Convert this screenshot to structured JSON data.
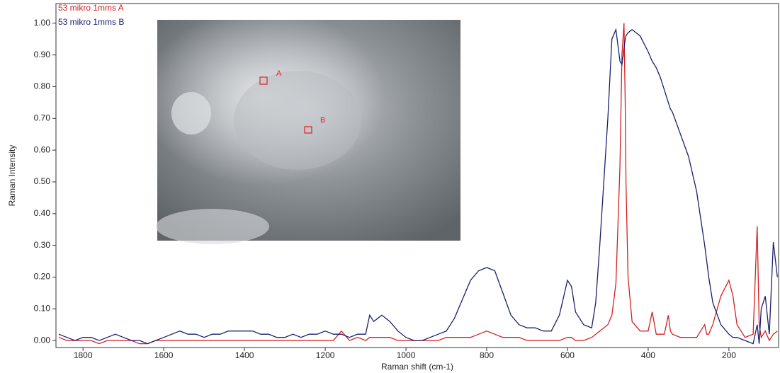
{
  "chart_data": {
    "type": "line",
    "xlabel": "Raman shift (cm-1)",
    "ylabel": "Raman Intensity",
    "annotations": [
      "A",
      "B"
    ],
    "x": [
      1860,
      1840,
      1820,
      1800,
      1780,
      1760,
      1740,
      1720,
      1700,
      1680,
      1660,
      1640,
      1620,
      1600,
      1580,
      1560,
      1540,
      1520,
      1500,
      1480,
      1460,
      1440,
      1420,
      1400,
      1380,
      1360,
      1340,
      1320,
      1300,
      1280,
      1260,
      1240,
      1220,
      1200,
      1180,
      1160,
      1140,
      1120,
      1100,
      1090,
      1080,
      1070,
      1060,
      1050,
      1040,
      1020,
      1000,
      980,
      960,
      940,
      920,
      900,
      880,
      860,
      840,
      820,
      800,
      780,
      760,
      740,
      720,
      700,
      680,
      660,
      640,
      620,
      600,
      590,
      580,
      560,
      540,
      530,
      520,
      500,
      490,
      480,
      470,
      465,
      460,
      457,
      455,
      450,
      440,
      420,
      400,
      390,
      380,
      370,
      360,
      350,
      345,
      340,
      320,
      300,
      280,
      260,
      255,
      250,
      240,
      220,
      200,
      190,
      180,
      160,
      140,
      130,
      125,
      120,
      110,
      100,
      90,
      80
    ],
    "series": [
      {
        "name": "53 mikro 1mms A",
        "color": "#d42020",
        "values": [
          0.01,
          0.0,
          0.0,
          0.0,
          0.0,
          -0.01,
          0.0,
          0.0,
          0.0,
          0.0,
          -0.01,
          -0.01,
          0.0,
          0.0,
          0.0,
          0.0,
          0.0,
          0.0,
          0.0,
          0.0,
          0.0,
          0.0,
          0.0,
          0.0,
          0.0,
          0.0,
          0.0,
          0.0,
          0.0,
          0.0,
          0.0,
          0.0,
          0.0,
          0.0,
          0.0,
          0.03,
          0.0,
          0.01,
          0.0,
          0.01,
          0.01,
          0.01,
          0.01,
          0.01,
          0.01,
          0.0,
          0.0,
          0.0,
          0.0,
          0.0,
          0.0,
          0.01,
          0.01,
          0.01,
          0.01,
          0.02,
          0.03,
          0.02,
          0.01,
          0.01,
          0.01,
          0.0,
          0.0,
          0.0,
          0.0,
          0.0,
          0.01,
          0.01,
          0.0,
          0.0,
          0.01,
          0.02,
          0.03,
          0.05,
          0.08,
          0.18,
          0.55,
          0.9,
          1.0,
          0.75,
          0.5,
          0.2,
          0.06,
          0.03,
          0.03,
          0.09,
          0.02,
          0.02,
          0.02,
          0.08,
          0.03,
          0.02,
          0.01,
          0.01,
          0.01,
          0.05,
          0.02,
          0.02,
          0.05,
          0.14,
          0.19,
          0.14,
          0.05,
          0.01,
          0.02,
          0.36,
          0.05,
          0.01,
          0.03,
          0.0,
          0.02,
          0.03
        ]
      },
      {
        "name": "53 mikro 1mms B",
        "color": "#1a1f6e",
        "values": [
          0.02,
          0.01,
          0.0,
          0.01,
          0.01,
          0.0,
          0.01,
          0.02,
          0.01,
          0.0,
          0.0,
          -0.01,
          0.0,
          0.01,
          0.02,
          0.03,
          0.02,
          0.02,
          0.01,
          0.02,
          0.02,
          0.03,
          0.03,
          0.03,
          0.03,
          0.02,
          0.02,
          0.01,
          0.01,
          0.02,
          0.01,
          0.02,
          0.02,
          0.03,
          0.02,
          0.02,
          0.01,
          0.02,
          0.02,
          0.08,
          0.06,
          0.07,
          0.08,
          0.07,
          0.06,
          0.03,
          0.01,
          0.0,
          0.0,
          0.01,
          0.02,
          0.03,
          0.07,
          0.13,
          0.19,
          0.22,
          0.23,
          0.22,
          0.15,
          0.08,
          0.05,
          0.04,
          0.04,
          0.03,
          0.03,
          0.08,
          0.19,
          0.17,
          0.09,
          0.05,
          0.04,
          0.12,
          0.3,
          0.7,
          0.95,
          0.98,
          0.88,
          0.87,
          0.92,
          0.95,
          0.96,
          0.97,
          0.98,
          0.96,
          0.91,
          0.88,
          0.86,
          0.83,
          0.79,
          0.75,
          0.73,
          0.72,
          0.65,
          0.58,
          0.47,
          0.3,
          0.25,
          0.2,
          0.12,
          0.05,
          0.02,
          0.01,
          0.01,
          0.0,
          -0.01,
          0.05,
          -0.01,
          0.1,
          0.14,
          0.02,
          0.31,
          0.2
        ]
      }
    ],
    "xlim": [
      1867,
      77
    ],
    "ylim": [
      -0.022,
      1.062
    ],
    "xticks": [
      1800,
      1600,
      1400,
      1200,
      1000,
      800,
      600,
      400,
      200
    ],
    "yticks": [
      {
        "value": 0,
        "label": "0.00"
      },
      {
        "value": 0.1,
        "label": "0.10"
      },
      {
        "value": 0.2,
        "label": "0.20"
      },
      {
        "value": 0.3,
        "label": "0.30"
      },
      {
        "value": 0.4,
        "label": "0.40"
      },
      {
        "value": 0.5,
        "label": "0.50"
      },
      {
        "value": 0.6,
        "label": "0.60"
      },
      {
        "value": 0.7,
        "label": "0.70"
      },
      {
        "value": 0.8,
        "label": "0.80"
      },
      {
        "value": 0.9,
        "label": "0.90"
      },
      {
        "value": 1,
        "label": "1.00"
      }
    ],
    "legend": "upper left"
  }
}
